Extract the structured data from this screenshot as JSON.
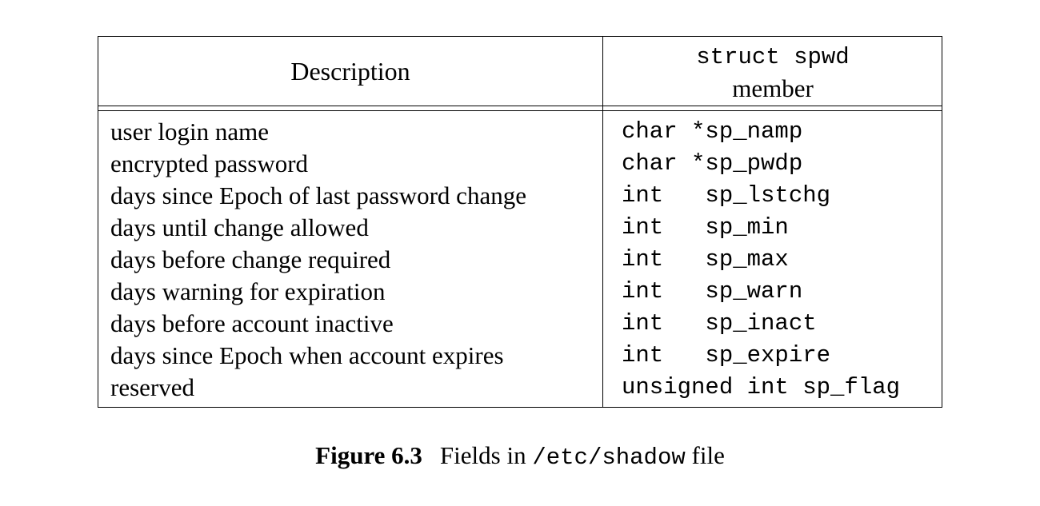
{
  "table": {
    "header": {
      "description": "Description",
      "member_code": "struct spwd",
      "member_word": "member"
    },
    "rows": [
      {
        "description": "user login name",
        "member": "char *sp_namp"
      },
      {
        "description": "encrypted password",
        "member": "char *sp_pwdp"
      },
      {
        "description": "days since Epoch of last password change",
        "member": "int   sp_lstchg"
      },
      {
        "description": "days until change allowed",
        "member": "int   sp_min"
      },
      {
        "description": "days before change required",
        "member": "int   sp_max"
      },
      {
        "description": "days warning for expiration",
        "member": "int   sp_warn"
      },
      {
        "description": "days before account inactive",
        "member": "int   sp_inact"
      },
      {
        "description": "days since Epoch when account expires",
        "member": "int   sp_expire"
      },
      {
        "description": "reserved",
        "member": "unsigned int sp_flag"
      }
    ]
  },
  "caption": {
    "label": "Figure 6.3",
    "text_before": "Fields in ",
    "code": "/etc/shadow",
    "text_after": " file"
  }
}
